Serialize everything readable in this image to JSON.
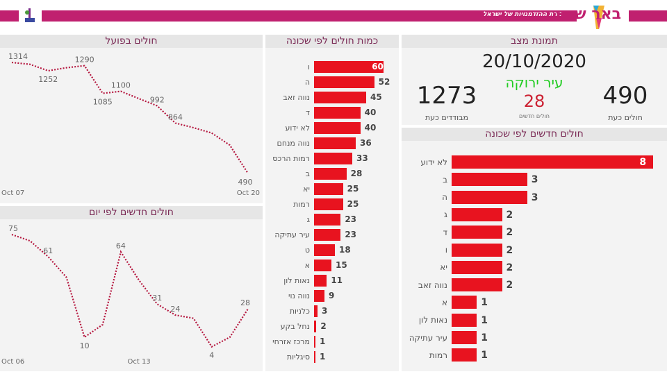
{
  "header": {
    "logo_text": "באר שבע",
    "slogan": "בירת ההזדמנויות של ישראל",
    "brand_color": "#c0206f"
  },
  "status": {
    "title": "תמונת מצב",
    "date": "20/10/2020",
    "city_status": "עיר ירוקה",
    "city_status_color": "#22cc22",
    "active_value": "490",
    "active_label": "חולים כעת",
    "new_value": "28",
    "new_label": "חולים חדשים",
    "isolated_value": "1273",
    "isolated_label": "מבודדים כעת"
  },
  "chart_data": [
    {
      "type": "line",
      "title": "חולים בפועל",
      "x": [
        "Oct 07",
        "Oct 08",
        "Oct 09",
        "Oct 10",
        "Oct 11",
        "Oct 12",
        "Oct 13",
        "Oct 14",
        "Oct 15",
        "Oct 16",
        "Oct 17",
        "Oct 18",
        "Oct 19",
        "Oct 20"
      ],
      "x_tick_labels": [
        "Oct 07",
        "Oct 20"
      ],
      "values": [
        1314,
        1300,
        1252,
        1275,
        1290,
        1085,
        1100,
        1045,
        992,
        864,
        830,
        790,
        700,
        490
      ],
      "data_labels": {
        "0": "1314",
        "2": "1252",
        "4": "1290",
        "5": "1085",
        "6": "1100",
        "8": "992",
        "9": "864",
        "13": "490"
      },
      "color": "#b5173f",
      "line_style": "dotted"
    },
    {
      "type": "line",
      "title": "חולים חדשים לפי יום",
      "x": [
        "Oct 06",
        "Oct 07",
        "Oct 08",
        "Oct 09",
        "Oct 10",
        "Oct 11",
        "Oct 12",
        "Oct 13",
        "Oct 14",
        "Oct 15",
        "Oct 16",
        "Oct 17",
        "Oct 18",
        "Oct 19"
      ],
      "x_tick_labels": [
        "Oct 06",
        "Oct 13"
      ],
      "values": [
        75,
        71,
        61,
        48,
        10,
        18,
        64,
        46,
        31,
        24,
        22,
        4,
        10,
        28
      ],
      "data_labels": {
        "0": "75",
        "2": "61",
        "4": "10",
        "6": "64",
        "8": "31",
        "9": "24",
        "11": "4",
        "13": "28"
      },
      "color": "#b5173f",
      "line_style": "dotted"
    },
    {
      "type": "bar",
      "orientation": "horizontal",
      "title": "כמות חולים לפי שכונה",
      "categories": [
        "ו",
        "ה",
        "נווה זאב",
        "ד",
        "לא ידוע",
        "נווה מנחם",
        "רמות הרכס",
        "ב",
        "יא",
        "רמות",
        "ג",
        "עיר עתיקה",
        "ט",
        "א",
        "נאות לון",
        "נווה נוי",
        "כלניות",
        "נחל בקע",
        "מרכז אזרחי",
        "סיגליות"
      ],
      "values": [
        60,
        52,
        45,
        40,
        40,
        36,
        33,
        28,
        25,
        25,
        23,
        23,
        18,
        15,
        11,
        9,
        3,
        2,
        1,
        1
      ],
      "color": "#e8131f"
    },
    {
      "type": "bar",
      "orientation": "horizontal",
      "title": "חולים חדשים לפי שכונה",
      "categories": [
        "לא ידוע",
        "ב",
        "ה",
        "ג",
        "ד",
        "ו",
        "יא",
        "נווה זאב",
        "א",
        "נאות לון",
        "עיר עתיקה",
        "רמות"
      ],
      "values": [
        8,
        3,
        3,
        2,
        2,
        2,
        2,
        2,
        1,
        1,
        1,
        1
      ],
      "color": "#e8131f"
    }
  ]
}
